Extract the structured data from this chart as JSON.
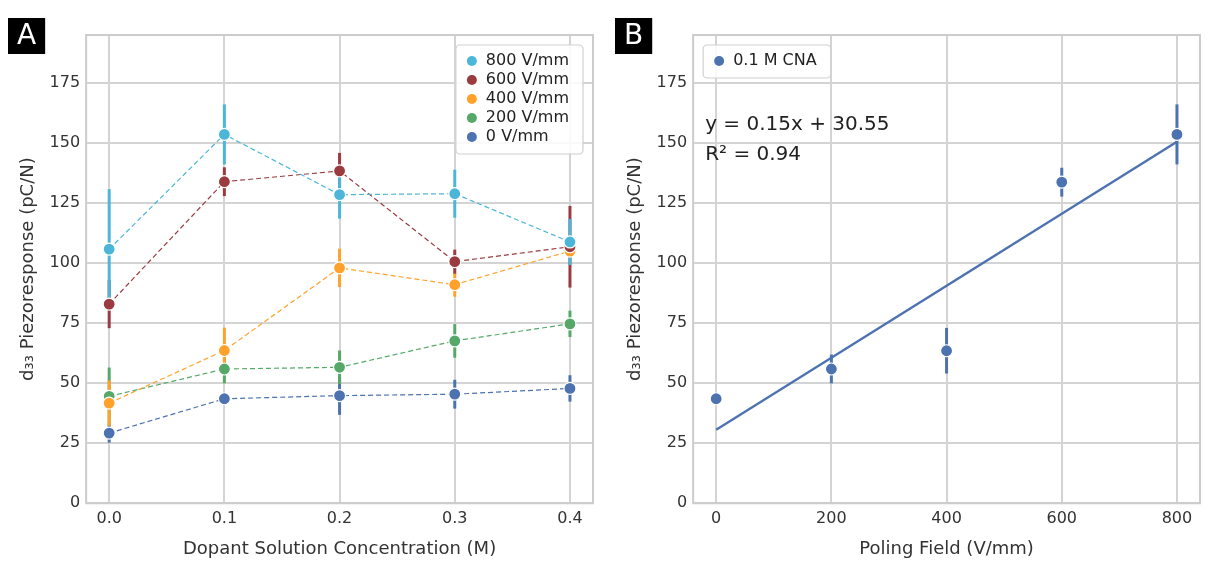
{
  "chart_data": [
    {
      "type": "line",
      "title": "A",
      "xlabel": "Dopant Solution Concentration (M)",
      "ylabel": "d₃₃ Piezoresponse (pC/N)",
      "x": [
        0,
        0.1,
        0.2,
        0.3,
        0.4
      ],
      "series": [
        {
          "name": "800 V/mm",
          "color": "#4cb6d9",
          "values": [
            105.8,
            153.6,
            128.5,
            128.9,
            108.8
          ],
          "errors": [
            25,
            12.5,
            10,
            10,
            9.6
          ]
        },
        {
          "name": "600 V/mm",
          "color": "#993b3f",
          "values": [
            82.9,
            133.9,
            138.4,
            100.6,
            106.8
          ],
          "errors": [
            10,
            6,
            7.5,
            5,
            17
          ]
        },
        {
          "name": "400 V/mm",
          "color": "#ffa12b",
          "values": [
            41.7,
            63.6,
            98,
            91,
            105
          ],
          "errors": [
            9.5,
            9.5,
            8,
            5,
            null
          ]
        },
        {
          "name": "200 V/mm",
          "color": "#55a868",
          "values": [
            44.5,
            55.9,
            56.6,
            67.6,
            74.7
          ],
          "errors": [
            12,
            6,
            7,
            7,
            5.5
          ]
        },
        {
          "name": "0 V/mm",
          "color": "#4c72b0",
          "values": [
            29.2,
            43.5,
            44.8,
            45.4,
            47.8
          ],
          "errors": [
            4,
            2,
            8,
            6,
            5.5
          ]
        }
      ],
      "xlim": [
        -0.02,
        0.42
      ],
      "xticks": [
        {
          "value": 0,
          "label": "0.0"
        },
        {
          "value": 0.1,
          "label": "0.1"
        },
        {
          "value": 0.2,
          "label": "0.2"
        },
        {
          "value": 0.3,
          "label": "0.3"
        },
        {
          "value": 0.4,
          "label": "0.4"
        }
      ],
      "ylim": [
        0,
        195
      ],
      "yticks": [
        0,
        25,
        50,
        75,
        100,
        125,
        150,
        175
      ],
      "grid": true,
      "legend": "top right",
      "marker": "circle",
      "line_style": "dashed"
    },
    {
      "type": "scatter",
      "title": "B",
      "xlabel": "Poling Field (V/mm)",
      "ylabel": "d₃₃ Piezoresponse (pC/N)",
      "x": [
        0,
        200,
        400,
        600,
        800
      ],
      "series": [
        {
          "name": "0.1 M CNA",
          "color": "#4c72b0",
          "values": [
            43.5,
            55.9,
            63.5,
            133.7,
            153.6
          ],
          "errors": [
            null,
            6,
            9.5,
            6,
            12.5
          ]
        },
        {
          "type": "line",
          "color": "#4c72b0",
          "x": [
            0,
            800
          ],
          "values": [
            30.55,
            150.55
          ],
          "marker": "none",
          "line_style": "solid"
        }
      ],
      "annotations": [
        "y = 0.15x + 30.55",
        "R² = 0.94"
      ],
      "xlim": [
        -40,
        840
      ],
      "xticks": [
        0,
        200,
        400,
        600,
        800
      ],
      "ylim": [
        0,
        195
      ],
      "yticks": [
        0,
        25,
        50,
        75,
        100,
        125,
        150,
        175
      ],
      "grid": true,
      "legend": "top left",
      "marker": "circle"
    }
  ]
}
